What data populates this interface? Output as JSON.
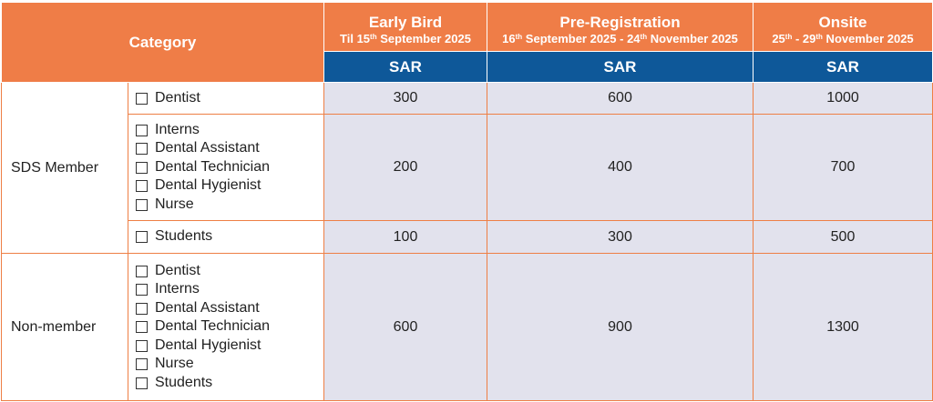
{
  "header": {
    "category_label": "Category",
    "columns": [
      {
        "title": "Early Bird",
        "sub_a": "Til 15",
        "sup_a": "th",
        "sub_b": " September 2025",
        "sup_b": "",
        "sub_c": ""
      },
      {
        "title": "Pre-Registration",
        "sub_a": "16",
        "sup_a": "th",
        "sub_b": " September 2025 - 24",
        "sup_b": "th",
        "sub_c": " November 2025"
      },
      {
        "title": "Onsite",
        "sub_a": "25",
        "sup_a": "th",
        "sub_b": " - 29",
        "sup_b": "th",
        "sub_c": " November 2025"
      }
    ],
    "currency": [
      "SAR",
      "SAR",
      "SAR"
    ]
  },
  "groups": [
    {
      "name": "SDS Member",
      "rows": [
        {
          "roles": [
            "Dentist"
          ],
          "prices": [
            "300",
            "600",
            "1000"
          ]
        },
        {
          "roles": [
            "Interns",
            "Dental Assistant",
            "Dental Technician",
            "Dental Hygienist",
            "Nurse"
          ],
          "prices": [
            "200",
            "400",
            "700"
          ]
        },
        {
          "roles": [
            "Students"
          ],
          "prices": [
            "100",
            "300",
            "500"
          ]
        }
      ]
    },
    {
      "name": "Non-member",
      "rows": [
        {
          "roles": [
            "Dentist",
            "Interns",
            "Dental Assistant",
            "Dental Technician",
            "Dental Hygienist",
            "Nurse",
            "Students"
          ],
          "prices": [
            "600",
            "900",
            "1300"
          ]
        }
      ]
    }
  ],
  "colors": {
    "header_orange": "#ef7d47",
    "currency_blue": "#0e5899",
    "price_cell": "#e2e2ed",
    "border": "#ee7f45"
  }
}
